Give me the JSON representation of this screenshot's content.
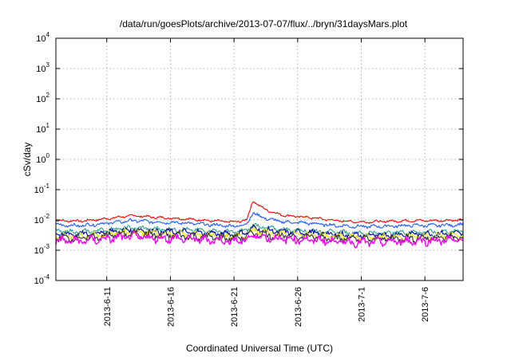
{
  "chart_data": {
    "type": "line",
    "title": "/data/run/goesPlots/archive/2013-07-07/flux/../bryn/31daysMars.plot",
    "xlabel": "Coordinated Universal Time (UTC)",
    "ylabel": "cSv/day",
    "yscale": "log",
    "ylim": [
      0.0001,
      10000
    ],
    "xlim": [
      "2013-06-07",
      "2013-07-09"
    ],
    "y_ticks": [
      {
        "value": 0.0001,
        "base": "10",
        "exp": "-4"
      },
      {
        "value": 0.001,
        "base": "10",
        "exp": "-3"
      },
      {
        "value": 0.01,
        "base": "10",
        "exp": "-2"
      },
      {
        "value": 0.1,
        "base": "10",
        "exp": "-1"
      },
      {
        "value": 1,
        "base": "10",
        "exp": "0"
      },
      {
        "value": 10,
        "base": "10",
        "exp": "1"
      },
      {
        "value": 100,
        "base": "10",
        "exp": "2"
      },
      {
        "value": 1000,
        "base": "10",
        "exp": "3"
      },
      {
        "value": 10000,
        "base": "10",
        "exp": "4"
      }
    ],
    "x_ticks": [
      {
        "date": "2013-06-11",
        "label": "2013-6-11"
      },
      {
        "date": "2013-06-16",
        "label": "2013-6-16"
      },
      {
        "date": "2013-06-21",
        "label": "2013-6-21"
      },
      {
        "date": "2013-06-26",
        "label": "2013-6-26"
      },
      {
        "date": "2013-07-01",
        "label": "2013-7-1"
      },
      {
        "date": "2013-07-06",
        "label": "2013-7-6"
      }
    ],
    "grid": true,
    "legend": "none",
    "series": [
      {
        "color": "#ff0000",
        "x": [
          "2013-06-07",
          "2013-06-09",
          "2013-06-11",
          "2013-06-13",
          "2013-06-15",
          "2013-06-17",
          "2013-06-19",
          "2013-06-21",
          "2013-06-22",
          "2013-06-22T12",
          "2013-06-23",
          "2013-06-24",
          "2013-06-25",
          "2013-06-27",
          "2013-06-29",
          "2013-07-01",
          "2013-07-03",
          "2013-07-05",
          "2013-07-07",
          "2013-07-09"
        ],
        "y": [
          0.0095,
          0.0092,
          0.011,
          0.014,
          0.012,
          0.011,
          0.0095,
          0.0085,
          0.01,
          0.045,
          0.028,
          0.018,
          0.014,
          0.012,
          0.0095,
          0.0085,
          0.009,
          0.0095,
          0.0095,
          0.01
        ]
      },
      {
        "color": "#1e5aff",
        "x": [
          "2013-06-07",
          "2013-06-09",
          "2013-06-11",
          "2013-06-13",
          "2013-06-15",
          "2013-06-17",
          "2013-06-19",
          "2013-06-21",
          "2013-06-22",
          "2013-06-22T12",
          "2013-06-23",
          "2013-06-24",
          "2013-06-25",
          "2013-06-27",
          "2013-06-29",
          "2013-07-01",
          "2013-07-03",
          "2013-07-05",
          "2013-07-07",
          "2013-07-09"
        ],
        "y": [
          0.0068,
          0.0065,
          0.0078,
          0.0095,
          0.0085,
          0.008,
          0.007,
          0.0062,
          0.0072,
          0.018,
          0.013,
          0.01,
          0.0085,
          0.0078,
          0.0065,
          0.006,
          0.0062,
          0.0066,
          0.0066,
          0.007
        ]
      },
      {
        "color": "#2aa198",
        "x": [
          "2013-06-07",
          "2013-06-09",
          "2013-06-11",
          "2013-06-13",
          "2013-06-15",
          "2013-06-17",
          "2013-06-19",
          "2013-06-21",
          "2013-06-22",
          "2013-06-22T12",
          "2013-06-23",
          "2013-06-24",
          "2013-06-25",
          "2013-06-27",
          "2013-06-29",
          "2013-07-01",
          "2013-07-03",
          "2013-07-05",
          "2013-07-07",
          "2013-07-09"
        ],
        "y": [
          0.0042,
          0.004,
          0.0048,
          0.0055,
          0.005,
          0.0048,
          0.0044,
          0.004,
          0.0045,
          0.007,
          0.006,
          0.0052,
          0.0047,
          0.0045,
          0.004,
          0.0037,
          0.0038,
          0.004,
          0.0041,
          0.0043
        ]
      },
      {
        "color": "#0000aa",
        "x": [
          "2013-06-07",
          "2013-06-09",
          "2013-06-11",
          "2013-06-13",
          "2013-06-15",
          "2013-06-17",
          "2013-06-19",
          "2013-06-21",
          "2013-06-22",
          "2013-06-22T12",
          "2013-06-23",
          "2013-06-24",
          "2013-06-25",
          "2013-06-27",
          "2013-06-29",
          "2013-07-01",
          "2013-07-03",
          "2013-07-05",
          "2013-07-07",
          "2013-07-09"
        ],
        "y": [
          0.0035,
          0.0033,
          0.004,
          0.0046,
          0.0042,
          0.004,
          0.0037,
          0.0034,
          0.0038,
          0.0055,
          0.0048,
          0.0043,
          0.004,
          0.0038,
          0.0034,
          0.003,
          0.0032,
          0.0034,
          0.0035,
          0.0036
        ]
      },
      {
        "color": "#e6e600",
        "x": [
          "2013-06-07",
          "2013-06-09",
          "2013-06-11",
          "2013-06-13",
          "2013-06-15",
          "2013-06-17",
          "2013-06-19",
          "2013-06-21",
          "2013-06-22",
          "2013-06-22T12",
          "2013-06-23",
          "2013-06-24",
          "2013-06-25",
          "2013-06-27",
          "2013-06-29",
          "2013-07-01",
          "2013-07-03",
          "2013-07-05",
          "2013-07-07",
          "2013-07-09"
        ],
        "y": [
          0.003,
          0.0029,
          0.0034,
          0.004,
          0.0036,
          0.0034,
          0.0031,
          0.0029,
          0.0032,
          0.0045,
          0.004,
          0.0036,
          0.0034,
          0.0032,
          0.0029,
          0.0026,
          0.0027,
          0.0029,
          0.003,
          0.0031
        ]
      },
      {
        "color": "#333333",
        "x": [
          "2013-06-07",
          "2013-06-09",
          "2013-06-11",
          "2013-06-13",
          "2013-06-15",
          "2013-06-17",
          "2013-06-19",
          "2013-06-21",
          "2013-06-22",
          "2013-06-22T12",
          "2013-06-23",
          "2013-06-24",
          "2013-06-25",
          "2013-06-27",
          "2013-06-29",
          "2013-07-01",
          "2013-07-03",
          "2013-07-05",
          "2013-07-07",
          "2013-07-09"
        ],
        "y": [
          0.0026,
          0.0025,
          0.003,
          0.0035,
          0.0032,
          0.003,
          0.0027,
          0.0025,
          0.0028,
          0.0038,
          0.0034,
          0.0031,
          0.0029,
          0.0028,
          0.0025,
          0.0023,
          0.0024,
          0.0025,
          0.0026,
          0.0027
        ]
      },
      {
        "color": "#ff00ff",
        "x": [
          "2013-06-07",
          "2013-06-09",
          "2013-06-11",
          "2013-06-13",
          "2013-06-15",
          "2013-06-17",
          "2013-06-19",
          "2013-06-21",
          "2013-06-22",
          "2013-06-22T12",
          "2013-06-23",
          "2013-06-24",
          "2013-06-25",
          "2013-06-27",
          "2013-06-29",
          "2013-07-01",
          "2013-07-03",
          "2013-07-05",
          "2013-07-07",
          "2013-07-09"
        ],
        "y": [
          0.0021,
          0.002,
          0.0024,
          0.0028,
          0.0025,
          0.0024,
          0.0022,
          0.002,
          0.0022,
          0.0032,
          0.0028,
          0.0025,
          0.0023,
          0.0022,
          0.002,
          0.0018,
          0.0019,
          0.002,
          0.0021,
          0.0022
        ]
      }
    ]
  }
}
